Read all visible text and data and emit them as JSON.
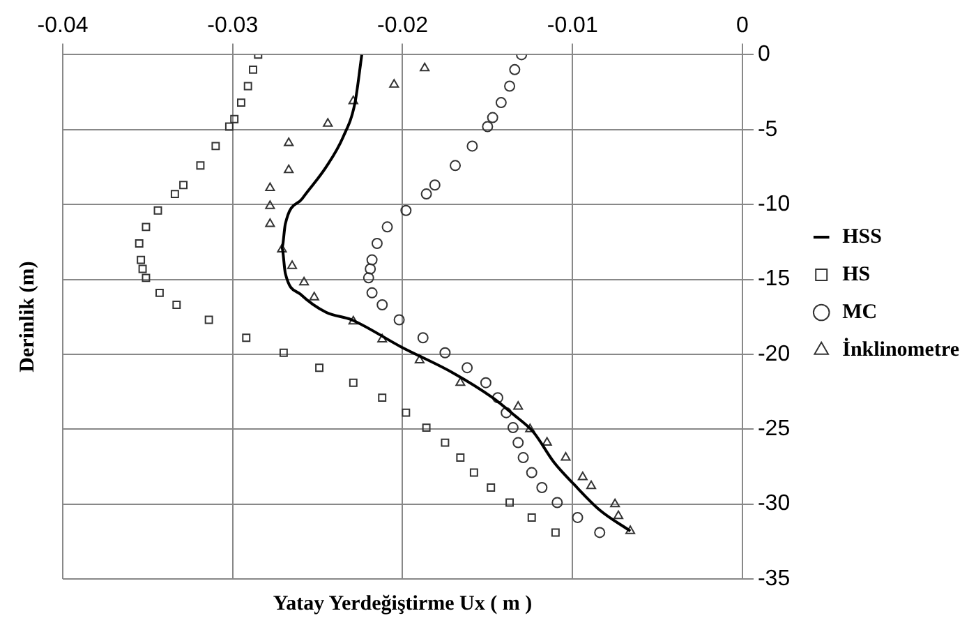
{
  "chart_data": {
    "type": "scatter",
    "xlabel": "Yatay Yerdeğiştirme Ux ( m )",
    "ylabel": "Derinlik (m)",
    "xlim": [
      -0.04,
      0
    ],
    "xticks": [
      -0.04,
      -0.03,
      -0.02,
      -0.01,
      0
    ],
    "ylim": [
      -35,
      0
    ],
    "yticks": [
      0,
      -5,
      -10,
      -15,
      -20,
      -25,
      -30,
      -35
    ],
    "grid": true,
    "legend": "right",
    "series": [
      {
        "name": "HSS",
        "type": "line",
        "color": "#000000",
        "marker": "none",
        "line_style": "solid",
        "x": [
          -0.0224,
          -0.0228,
          -0.0235,
          -0.0245,
          -0.0259,
          -0.0269,
          -0.0271,
          -0.0269,
          -0.026,
          -0.0245,
          -0.023,
          -0.0201,
          -0.0171,
          -0.0147,
          -0.0135,
          -0.0123,
          -0.0111,
          -0.0099,
          -0.0084,
          -0.0066
        ],
        "values": [
          0,
          -3.2,
          -5.5,
          -7.5,
          -9.6,
          -11.3,
          -12.9,
          -14.6,
          -16,
          -17.2,
          -17.7,
          -19.5,
          -21.2,
          -22.9,
          -24,
          -25.2,
          -27.2,
          -28.7,
          -30.4,
          -31.8
        ]
      },
      {
        "name": "HS",
        "type": "scatter",
        "color": "#333333",
        "marker": "square",
        "x": [
          -0.0285,
          -0.0288,
          -0.0291,
          -0.0295,
          -0.0299,
          -0.0302,
          -0.031,
          -0.0319,
          -0.0329,
          -0.0334,
          -0.0344,
          -0.0351,
          -0.0355,
          -0.0354,
          -0.0353,
          -0.0351,
          -0.0343,
          -0.0333,
          -0.0314,
          -0.0292,
          -0.027,
          -0.0249,
          -0.0229,
          -0.0212,
          -0.0198,
          -0.0186,
          -0.0175,
          -0.0166,
          -0.0158,
          -0.0148,
          -0.0137,
          -0.0124,
          -0.011
        ],
        "values": [
          0,
          -1,
          -2.1,
          -3.2,
          -4.3,
          -4.8,
          -6.1,
          -7.4,
          -8.7,
          -9.3,
          -10.4,
          -11.5,
          -12.6,
          -13.7,
          -14.3,
          -14.9,
          -15.9,
          -16.7,
          -17.7,
          -18.9,
          -19.9,
          -20.9,
          -21.9,
          -22.9,
          -23.9,
          -24.9,
          -25.9,
          -26.9,
          -27.9,
          -28.9,
          -29.9,
          -30.9,
          -31.9
        ]
      },
      {
        "name": "MC",
        "type": "scatter",
        "color": "#333333",
        "marker": "circle",
        "x": [
          -0.013,
          -0.0134,
          -0.0137,
          -0.0142,
          -0.0147,
          -0.015,
          -0.0159,
          -0.0169,
          -0.0181,
          -0.0186,
          -0.0198,
          -0.0209,
          -0.0215,
          -0.0218,
          -0.0219,
          -0.022,
          -0.0218,
          -0.0212,
          -0.0202,
          -0.0188,
          -0.0175,
          -0.0162,
          -0.0151,
          -0.0144,
          -0.0139,
          -0.0135,
          -0.0132,
          -0.0129,
          -0.0124,
          -0.0118,
          -0.0109,
          -0.0097,
          -0.0084
        ],
        "values": [
          0,
          -1,
          -2.1,
          -3.2,
          -4.2,
          -4.8,
          -6.1,
          -7.4,
          -8.7,
          -9.3,
          -10.4,
          -11.5,
          -12.6,
          -13.7,
          -14.3,
          -14.9,
          -15.9,
          -16.7,
          -17.7,
          -18.9,
          -19.9,
          -20.9,
          -21.9,
          -22.9,
          -23.9,
          -24.9,
          -25.9,
          -26.9,
          -27.9,
          -28.9,
          -29.9,
          -30.9,
          -31.9
        ]
      },
      {
        "name": "İnklinometre",
        "type": "scatter",
        "color": "#333333",
        "marker": "triangle",
        "x": [
          -0.0187,
          -0.0205,
          -0.0229,
          -0.0244,
          -0.0267,
          -0.0267,
          -0.0278,
          -0.0278,
          -0.0278,
          -0.0271,
          -0.0265,
          -0.0258,
          -0.0252,
          -0.0229,
          -0.0212,
          -0.019,
          -0.0166,
          -0.0132,
          -0.0125,
          -0.0115,
          -0.0104,
          -0.0094,
          -0.0089,
          -0.0075,
          -0.0073,
          -0.0066
        ],
        "values": [
          -0.9,
          -2,
          -3.1,
          -4.6,
          -5.9,
          -7.7,
          -8.9,
          -10.1,
          -11.3,
          -13,
          -14.1,
          -15.2,
          -16.2,
          -17.8,
          -19,
          -20.4,
          -21.9,
          -23.5,
          -25,
          -25.9,
          -26.9,
          -28.2,
          -28.8,
          -30,
          -30.8,
          -31.8
        ]
      }
    ]
  }
}
